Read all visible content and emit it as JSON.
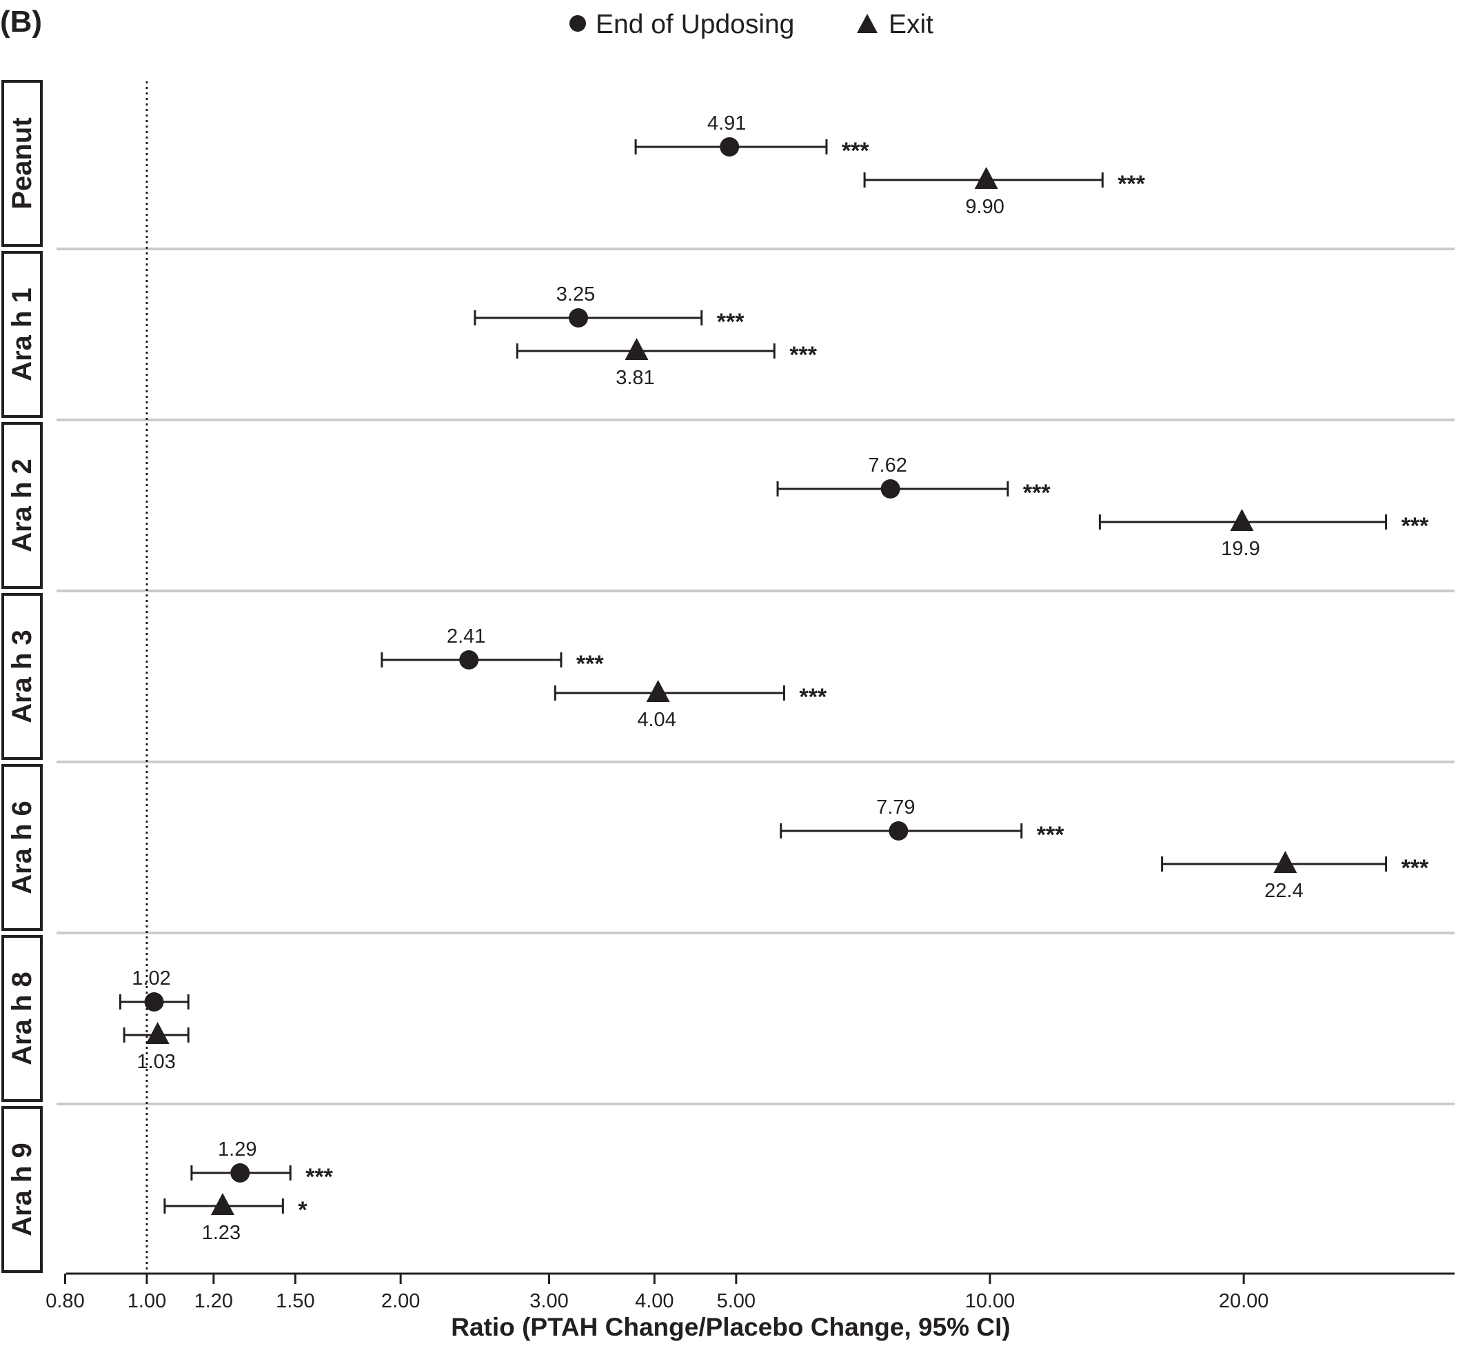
{
  "chart_data": {
    "type": "scatter",
    "subtype": "forest-plot",
    "panel_tag": "(B)",
    "title": "",
    "xlabel": "Ratio (PTAH Change/Placebo Change, 95% CI)",
    "ylabel": "",
    "x_scale": "log",
    "xlim": [
      0.76,
      29.5
    ],
    "x_ticks": [
      {
        "value": 0.8,
        "label": "0.80"
      },
      {
        "value": 1.0,
        "label": "1.00"
      },
      {
        "value": 1.2,
        "label": "1.20"
      },
      {
        "value": 1.5,
        "label": "1.50"
      },
      {
        "value": 2.0,
        "label": "2.00"
      },
      {
        "value": 3.0,
        "label": "3.00"
      },
      {
        "value": 4.0,
        "label": "4.00"
      },
      {
        "value": 5.0,
        "label": "5.00"
      },
      {
        "value": 10.0,
        "label": "10.00"
      },
      {
        "value": 20.0,
        "label": "20.00"
      }
    ],
    "reference_line": 1.0,
    "grid": false,
    "legend": {
      "placement": "top-center",
      "entries": [
        {
          "name": "End of Updosing",
          "marker": "circle"
        },
        {
          "name": "Exit",
          "marker": "triangle"
        }
      ]
    },
    "categories": [
      "Peanut",
      "Ara h 1",
      "Ara h 2",
      "Ara h 3",
      "Ara h 6",
      "Ara h 8",
      "Ara h 9"
    ],
    "series": [
      {
        "name": "End of Updosing",
        "marker": "circle",
        "points": [
          {
            "category": "Peanut",
            "value": 4.91,
            "label": "4.91",
            "ci": [
              3.8,
              6.4
            ],
            "sig": "***"
          },
          {
            "category": "Ara h 1",
            "value": 3.25,
            "label": "3.25",
            "ci": [
              2.45,
              4.55
            ],
            "sig": "***"
          },
          {
            "category": "Ara h 2",
            "value": 7.62,
            "label": "7.62",
            "ci": [
              5.6,
              10.5
            ],
            "sig": "***"
          },
          {
            "category": "Ara h 3",
            "value": 2.41,
            "label": "2.41",
            "ci": [
              1.9,
              3.1
            ],
            "sig": "***"
          },
          {
            "category": "Ara h 6",
            "value": 7.79,
            "label": "7.79",
            "ci": [
              5.65,
              10.9
            ],
            "sig": "***"
          },
          {
            "category": "Ara h 8",
            "value": 1.02,
            "label": "1.02",
            "ci": [
              0.93,
              1.12
            ],
            "sig": ""
          },
          {
            "category": "Ara h 9",
            "value": 1.29,
            "label": "1.29",
            "ci": [
              1.13,
              1.48
            ],
            "sig": "***"
          }
        ]
      },
      {
        "name": "Exit",
        "marker": "triangle",
        "points": [
          {
            "category": "Peanut",
            "value": 9.9,
            "label": "9.90",
            "ci": [
              7.1,
              13.6
            ],
            "sig": "***"
          },
          {
            "category": "Ara h 1",
            "value": 3.81,
            "label": "3.81",
            "ci": [
              2.75,
              5.55
            ],
            "sig": "***"
          },
          {
            "category": "Ara h 2",
            "value": 19.9,
            "label": "19.9",
            "ci": [
              13.5,
              29.5
            ],
            "sig": "***"
          },
          {
            "category": "Ara h 3",
            "value": 4.04,
            "label": "4.04",
            "ci": [
              3.05,
              5.7
            ],
            "sig": "***"
          },
          {
            "category": "Ara h 6",
            "value": 22.4,
            "label": "22.4",
            "ci": [
              16.0,
              34.0
            ],
            "sig": "***"
          },
          {
            "category": "Ara h 8",
            "value": 1.03,
            "label": "1.03",
            "ci": [
              0.94,
              1.12
            ],
            "sig": ""
          },
          {
            "category": "Ara h 9",
            "value": 1.23,
            "label": "1.23",
            "ci": [
              1.05,
              1.45
            ],
            "sig": "*"
          }
        ]
      }
    ]
  }
}
